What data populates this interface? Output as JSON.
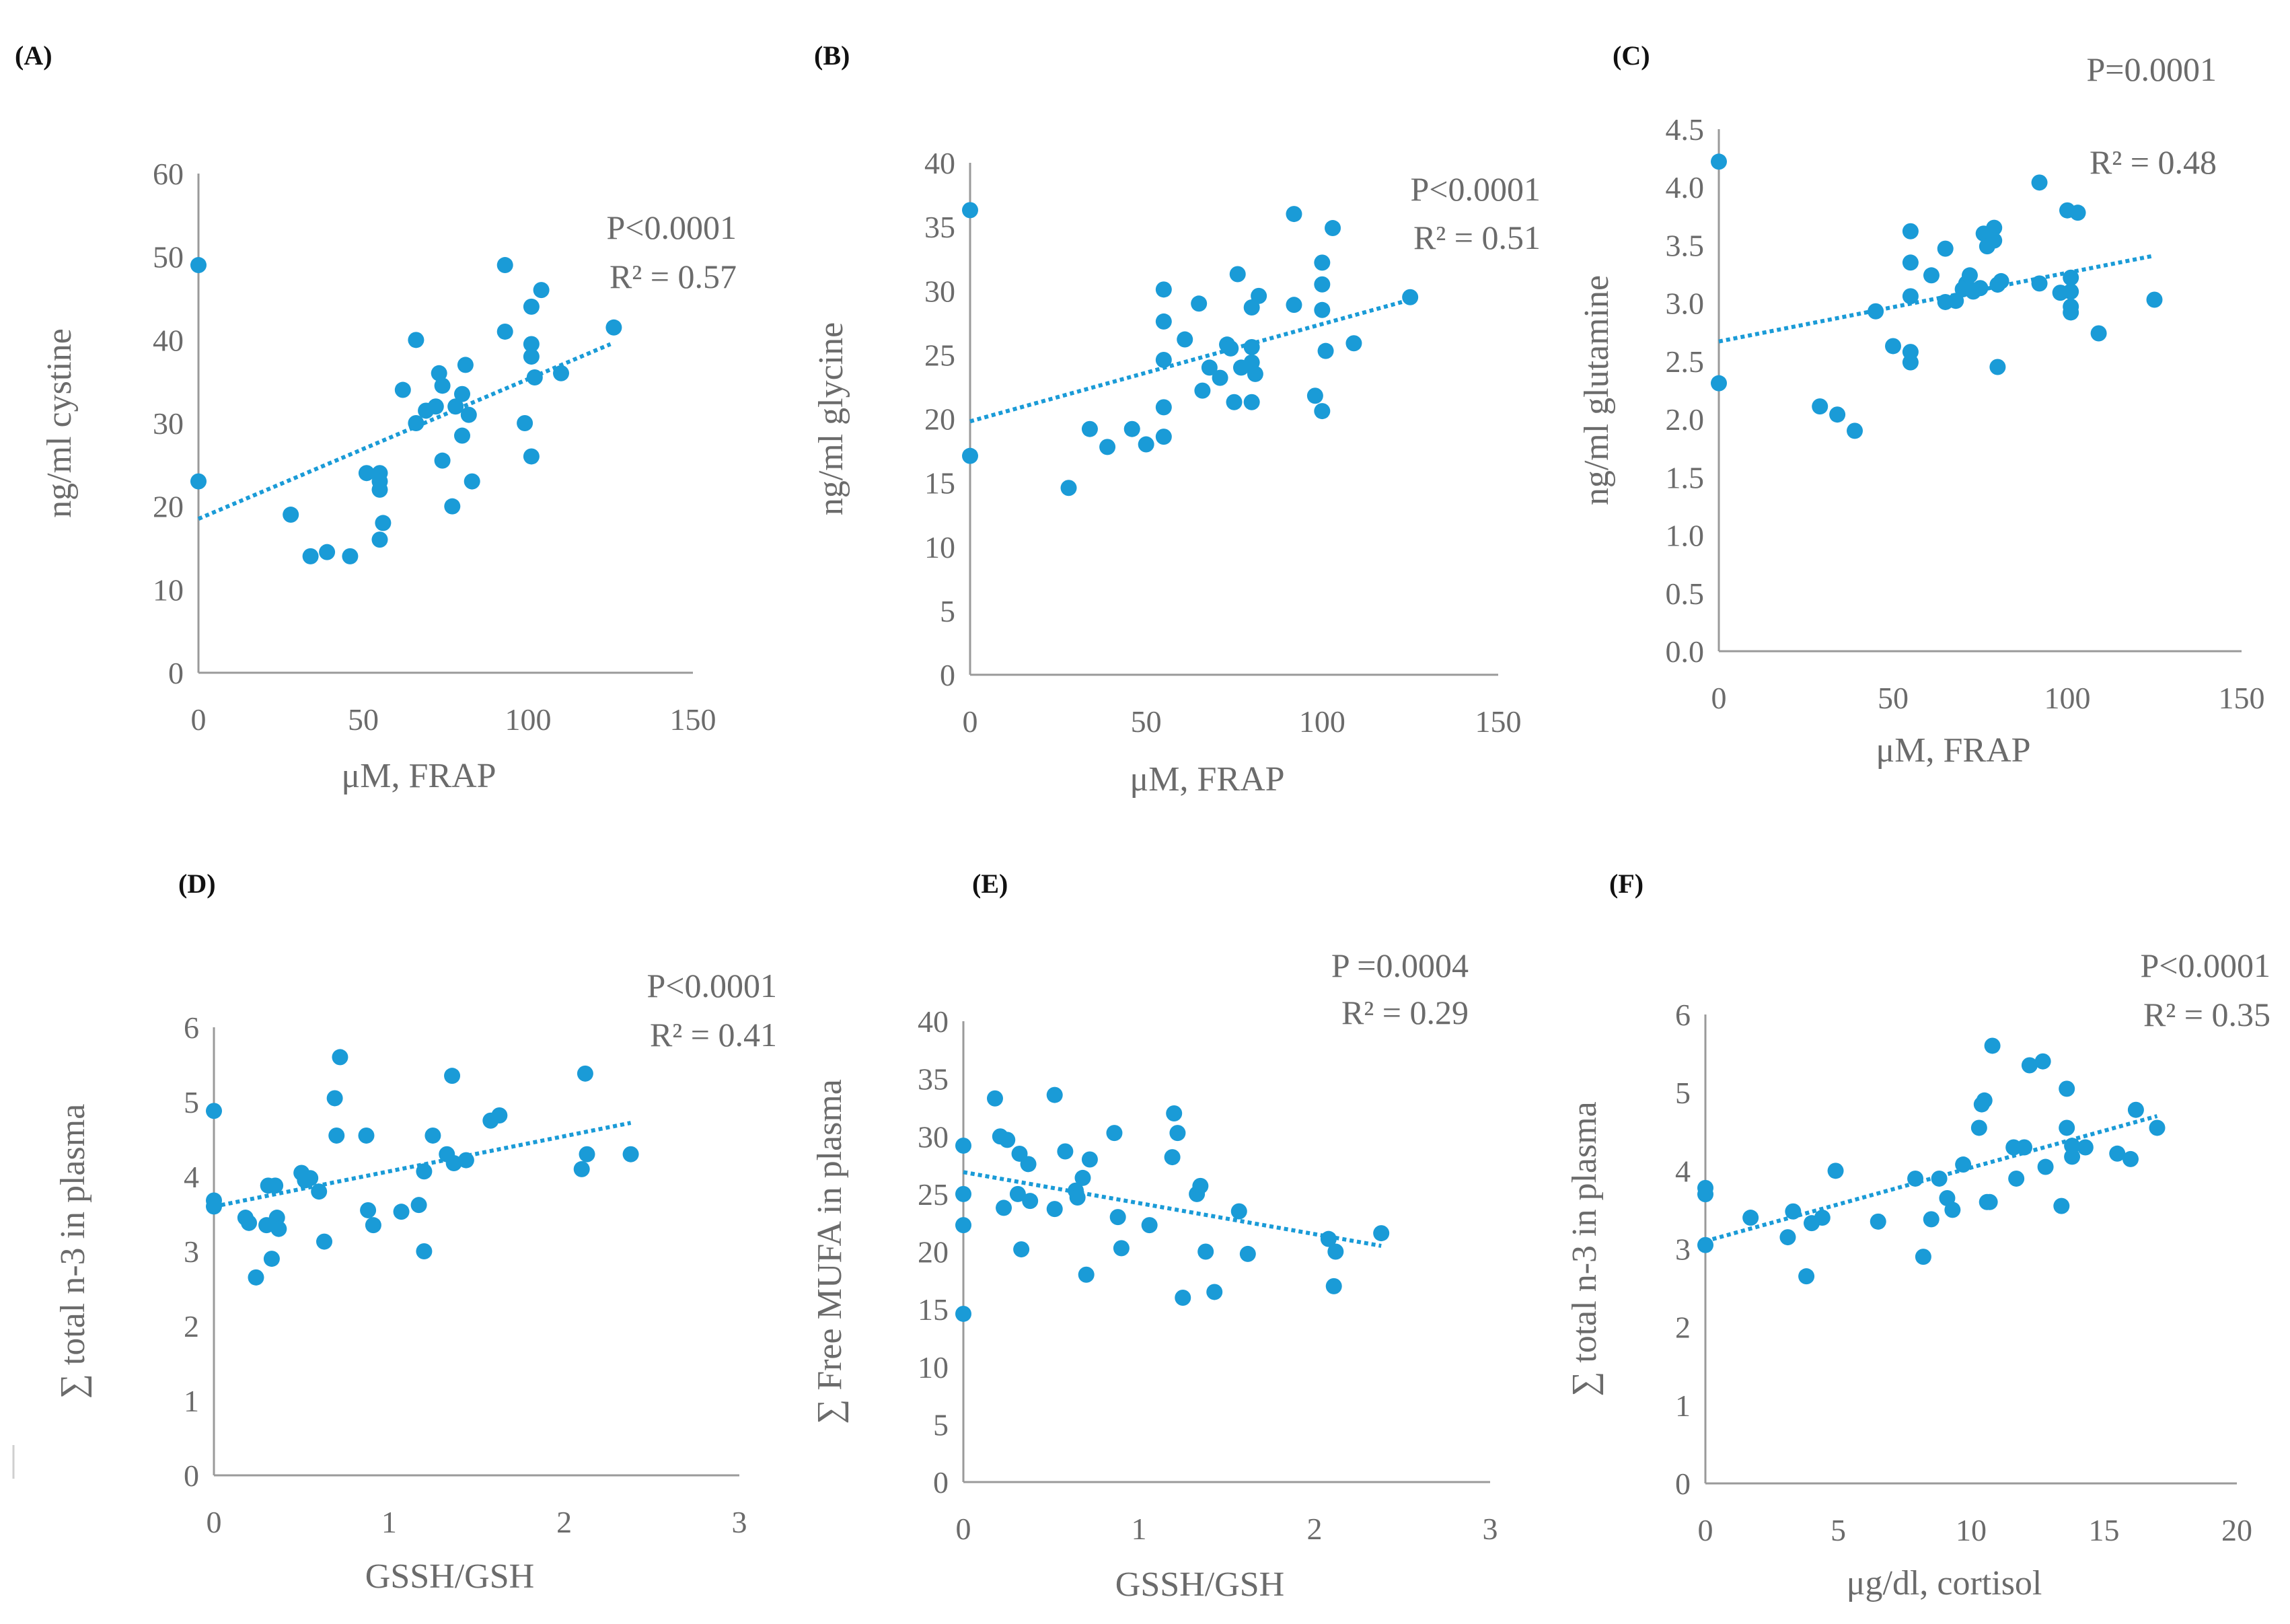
{
  "chart_data": [
    {
      "type": "scatter",
      "panel_label": "(A)",
      "title": "",
      "xlabel": "μM, FRAP",
      "ylabel": "ng/ml cystine",
      "xlim": [
        0,
        150
      ],
      "ylim": [
        0,
        60
      ],
      "xticks": [
        "0",
        "50",
        "100",
        "150"
      ],
      "yticks": [
        "0",
        "10",
        "20",
        "30",
        "40",
        "50",
        "60"
      ],
      "annotations": [
        "P<0.0001",
        "R² = 0.57"
      ],
      "trendline": {
        "style": "dotted",
        "x": [
          0,
          125
        ],
        "y": [
          18.5,
          39.5
        ]
      },
      "points": [
        [
          0,
          49
        ],
        [
          0,
          23
        ],
        [
          28,
          19
        ],
        [
          34,
          14
        ],
        [
          39,
          14.5
        ],
        [
          46,
          14
        ],
        [
          51,
          24
        ],
        [
          55,
          24
        ],
        [
          55,
          23
        ],
        [
          55,
          22
        ],
        [
          56,
          18
        ],
        [
          55,
          16
        ],
        [
          62,
          34
        ],
        [
          66,
          40
        ],
        [
          66,
          30
        ],
        [
          69,
          31.5
        ],
        [
          72,
          32
        ],
        [
          73,
          36
        ],
        [
          74,
          34.5
        ],
        [
          74,
          25.5
        ],
        [
          77,
          20
        ],
        [
          78,
          32
        ],
        [
          80,
          33.5
        ],
        [
          81,
          37
        ],
        [
          80,
          28.5
        ],
        [
          82,
          31
        ],
        [
          83,
          23
        ],
        [
          93,
          49
        ],
        [
          93,
          41
        ],
        [
          99,
          30
        ],
        [
          101,
          44
        ],
        [
          101,
          39.5
        ],
        [
          101,
          38
        ],
        [
          101,
          26
        ],
        [
          102,
          35.5
        ],
        [
          104,
          46
        ],
        [
          110,
          36
        ],
        [
          126,
          41.5
        ]
      ]
    },
    {
      "type": "scatter",
      "panel_label": "(B)",
      "title": "",
      "xlabel": "μM, FRAP",
      "ylabel": "ng/ml glycine",
      "xlim": [
        0,
        150
      ],
      "ylim": [
        0,
        40
      ],
      "xticks": [
        "0",
        "50",
        "100",
        "150"
      ],
      "yticks": [
        "0",
        "5",
        "10",
        "15",
        "20",
        "25",
        "30",
        "35",
        "40"
      ],
      "annotations": [
        "P<0.0001",
        "R² = 0.51"
      ],
      "trendline": {
        "style": "dotted",
        "x": [
          0,
          125
        ],
        "y": [
          19.8,
          29.3
        ]
      },
      "points": [
        [
          0,
          36.3
        ],
        [
          0,
          17.1
        ],
        [
          28,
          14.6
        ],
        [
          34,
          19.2
        ],
        [
          39,
          17.8
        ],
        [
          46,
          19.2
        ],
        [
          50,
          18
        ],
        [
          55,
          30.1
        ],
        [
          55,
          27.6
        ],
        [
          55,
          24.6
        ],
        [
          55,
          20.9
        ],
        [
          55,
          18.6
        ],
        [
          61,
          26.2
        ],
        [
          65,
          29
        ],
        [
          66,
          22.2
        ],
        [
          68,
          24
        ],
        [
          71,
          23.2
        ],
        [
          73,
          25.8
        ],
        [
          74,
          25.5
        ],
        [
          76,
          31.3
        ],
        [
          75,
          21.3
        ],
        [
          77,
          24
        ],
        [
          80,
          28.7
        ],
        [
          80,
          25.6
        ],
        [
          80,
          24.4
        ],
        [
          80,
          21.3
        ],
        [
          81,
          23.5
        ],
        [
          82,
          29.6
        ],
        [
          92,
          36
        ],
        [
          92,
          28.9
        ],
        [
          98,
          21.8
        ],
        [
          100,
          32.2
        ],
        [
          100,
          30.5
        ],
        [
          100,
          28.5
        ],
        [
          100,
          20.6
        ],
        [
          101,
          25.3
        ],
        [
          103,
          34.9
        ],
        [
          109,
          25.9
        ],
        [
          125,
          29.5
        ]
      ]
    },
    {
      "type": "scatter",
      "panel_label": "(C)",
      "title": "",
      "xlabel": "μM, FRAP",
      "ylabel": "ng/ml glutamine",
      "xlim": [
        0,
        150
      ],
      "ylim": [
        0,
        4.5
      ],
      "xticks": [
        "0",
        "50",
        "100",
        "150"
      ],
      "yticks": [
        "0.0",
        "0.5",
        "1.0",
        "1.5",
        "2.0",
        "2.5",
        "3.0",
        "3.5",
        "4.0",
        "4.5"
      ],
      "annotations": [
        "P=0.0001",
        "R² = 0.48"
      ],
      "trendline": {
        "style": "dotted",
        "x": [
          0,
          125
        ],
        "y": [
          2.67,
          3.41
        ]
      },
      "points": [
        [
          0,
          4.22
        ],
        [
          0,
          2.31
        ],
        [
          29,
          2.11
        ],
        [
          34,
          2.04
        ],
        [
          39,
          1.9
        ],
        [
          45,
          2.93
        ],
        [
          50,
          2.63
        ],
        [
          55,
          3.62
        ],
        [
          55,
          3.35
        ],
        [
          55,
          3.06
        ],
        [
          55,
          2.58
        ],
        [
          55,
          2.49
        ],
        [
          61,
          3.24
        ],
        [
          65,
          3.47
        ],
        [
          65,
          3.01
        ],
        [
          68,
          3.02
        ],
        [
          70,
          3.12
        ],
        [
          71,
          3.17
        ],
        [
          72,
          3.24
        ],
        [
          73,
          3.1
        ],
        [
          75,
          3.13
        ],
        [
          76,
          3.6
        ],
        [
          77,
          3.49
        ],
        [
          79,
          3.65
        ],
        [
          79,
          3.54
        ],
        [
          80,
          3.16
        ],
        [
          80,
          2.45
        ],
        [
          81,
          3.19
        ],
        [
          92,
          4.04
        ],
        [
          92,
          3.17
        ],
        [
          98,
          3.09
        ],
        [
          100,
          3.8
        ],
        [
          101,
          3.22
        ],
        [
          101,
          3.1
        ],
        [
          101,
          2.97
        ],
        [
          101,
          2.92
        ],
        [
          103,
          3.78
        ],
        [
          109,
          2.74
        ],
        [
          125,
          3.03
        ]
      ]
    },
    {
      "type": "scatter",
      "panel_label": "(D)",
      "title": "",
      "xlabel": "GSSH/GSH",
      "ylabel": "∑ total n-3 in plasma",
      "xlim": [
        0,
        3
      ],
      "ylim": [
        0,
        6
      ],
      "xticks": [
        "0",
        "1",
        "2",
        "3"
      ],
      "yticks": [
        "0",
        "1",
        "2",
        "3",
        "4",
        "5",
        "6"
      ],
      "annotations": [
        "P<0.0001",
        "R² = 0.41"
      ],
      "trendline": {
        "style": "dotted",
        "x": [
          0,
          2.38
        ],
        "y": [
          3.6,
          4.72
        ]
      },
      "points": [
        [
          0,
          4.88
        ],
        [
          0,
          3.68
        ],
        [
          0,
          3.6
        ],
        [
          0.18,
          3.45
        ],
        [
          0.2,
          3.38
        ],
        [
          0.24,
          2.65
        ],
        [
          0.3,
          3.35
        ],
        [
          0.31,
          3.88
        ],
        [
          0.33,
          2.9
        ],
        [
          0.35,
          3.88
        ],
        [
          0.36,
          3.45
        ],
        [
          0.37,
          3.3
        ],
        [
          0.5,
          4.05
        ],
        [
          0.52,
          3.95
        ],
        [
          0.55,
          3.98
        ],
        [
          0.6,
          3.8
        ],
        [
          0.63,
          3.13
        ],
        [
          0.69,
          5.05
        ],
        [
          0.7,
          4.55
        ],
        [
          0.72,
          5.6
        ],
        [
          0.87,
          4.55
        ],
        [
          0.88,
          3.55
        ],
        [
          0.91,
          3.35
        ],
        [
          1.07,
          3.53
        ],
        [
          1.17,
          3.62
        ],
        [
          1.2,
          4.07
        ],
        [
          1.2,
          3
        ],
        [
          1.25,
          4.55
        ],
        [
          1.33,
          4.3
        ],
        [
          1.36,
          5.35
        ],
        [
          1.37,
          4.18
        ],
        [
          1.44,
          4.22
        ],
        [
          1.58,
          4.75
        ],
        [
          1.63,
          4.82
        ],
        [
          2.1,
          4.1
        ],
        [
          2.12,
          5.38
        ],
        [
          2.13,
          4.3
        ],
        [
          2.38,
          4.3
        ]
      ]
    },
    {
      "type": "scatter",
      "panel_label": "(E)",
      "title": "",
      "xlabel": "GSSH/GSH",
      "ylabel": "∑ Free MUFA in plasma",
      "xlim": [
        0,
        3
      ],
      "ylim": [
        0,
        40
      ],
      "xticks": [
        "0",
        "1",
        "2",
        "3"
      ],
      "yticks": [
        "0",
        "5",
        "10",
        "15",
        "20",
        "25",
        "30",
        "35",
        "40"
      ],
      "annotations": [
        "P =0.0004",
        "R² = 0.29"
      ],
      "trendline": {
        "style": "dotted",
        "x": [
          0,
          2.38
        ],
        "y": [
          26.9,
          20.5
        ]
      },
      "points": [
        [
          0,
          29.2
        ],
        [
          0,
          25
        ],
        [
          0,
          22.3
        ],
        [
          0,
          14.6
        ],
        [
          0.18,
          33.3
        ],
        [
          0.21,
          30
        ],
        [
          0.23,
          23.8
        ],
        [
          0.25,
          29.7
        ],
        [
          0.31,
          25
        ],
        [
          0.32,
          28.5
        ],
        [
          0.33,
          20.2
        ],
        [
          0.37,
          27.6
        ],
        [
          0.38,
          24.4
        ],
        [
          0.52,
          33.6
        ],
        [
          0.52,
          23.7
        ],
        [
          0.58,
          28.7
        ],
        [
          0.64,
          25.3
        ],
        [
          0.65,
          24.7
        ],
        [
          0.68,
          26.4
        ],
        [
          0.7,
          18
        ],
        [
          0.72,
          28
        ],
        [
          0.86,
          30.3
        ],
        [
          0.88,
          23
        ],
        [
          0.9,
          20.3
        ],
        [
          1.06,
          22.3
        ],
        [
          1.19,
          28.2
        ],
        [
          1.2,
          32
        ],
        [
          1.22,
          30.3
        ],
        [
          1.25,
          16
        ],
        [
          1.33,
          25
        ],
        [
          1.35,
          25.7
        ],
        [
          1.38,
          20
        ],
        [
          1.43,
          16.5
        ],
        [
          1.57,
          23.5
        ],
        [
          1.62,
          19.8
        ],
        [
          2.08,
          21.1
        ],
        [
          2.11,
          17
        ],
        [
          2.12,
          20
        ],
        [
          2.38,
          21.6
        ]
      ]
    },
    {
      "type": "scatter",
      "panel_label": "(F)",
      "title": "",
      "xlabel": "μg/dl, cortisol",
      "ylabel": "∑ total n-3 in plasma",
      "xlim": [
        0,
        20
      ],
      "ylim": [
        0,
        6
      ],
      "xticks": [
        "0",
        "5",
        "10",
        "15",
        "20"
      ],
      "yticks": [
        "0",
        "1",
        "2",
        "3",
        "4",
        "5",
        "6"
      ],
      "annotations": [
        "P<0.0001",
        "R² = 0.35"
      ],
      "trendline": {
        "style": "dotted",
        "x": [
          0,
          17
        ],
        "y": [
          3.1,
          4.7
        ]
      },
      "points": [
        [
          0,
          3.78
        ],
        [
          0,
          3.7
        ],
        [
          0,
          3.05
        ],
        [
          1.7,
          3.4
        ],
        [
          3.1,
          3.15
        ],
        [
          3.3,
          3.48
        ],
        [
          3.8,
          2.65
        ],
        [
          4,
          3.33
        ],
        [
          4.4,
          3.4
        ],
        [
          4.9,
          4
        ],
        [
          6.5,
          3.35
        ],
        [
          7.9,
          3.9
        ],
        [
          8.2,
          2.9
        ],
        [
          8.5,
          3.38
        ],
        [
          8.8,
          3.9
        ],
        [
          9.1,
          3.65
        ],
        [
          9.3,
          3.5
        ],
        [
          9.7,
          4.08
        ],
        [
          10.3,
          4.55
        ],
        [
          10.4,
          4.85
        ],
        [
          10.5,
          4.9
        ],
        [
          10.6,
          3.6
        ],
        [
          10.7,
          3.6
        ],
        [
          10.8,
          5.6
        ],
        [
          11.6,
          4.3
        ],
        [
          11.7,
          3.9
        ],
        [
          12,
          4.3
        ],
        [
          12.2,
          5.35
        ],
        [
          12.7,
          5.4
        ],
        [
          12.8,
          4.05
        ],
        [
          13.4,
          3.55
        ],
        [
          13.6,
          5.05
        ],
        [
          13.6,
          4.55
        ],
        [
          13.8,
          4.18
        ],
        [
          13.8,
          4.32
        ],
        [
          14.3,
          4.3
        ],
        [
          15.5,
          4.22
        ],
        [
          16,
          4.15
        ],
        [
          16.2,
          4.78
        ],
        [
          17,
          4.55
        ]
      ]
    }
  ]
}
